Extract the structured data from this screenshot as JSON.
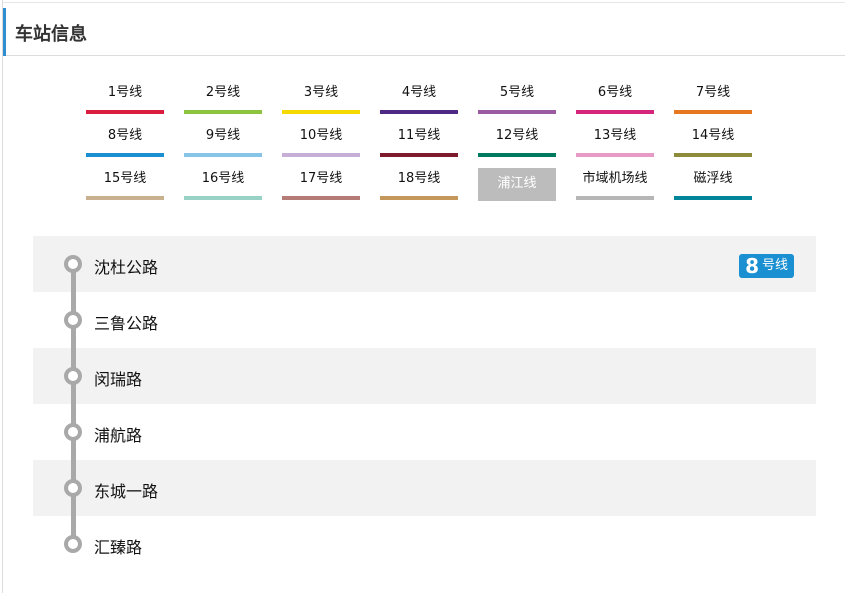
{
  "header": {
    "title": "车站信息",
    "accent_color": "#2d8fd0"
  },
  "lines": [
    {
      "label": "1号线",
      "color": "#d81e3c"
    },
    {
      "label": "2号线",
      "color": "#8dc43f"
    },
    {
      "label": "3号线",
      "color": "#f5d800"
    },
    {
      "label": "4号线",
      "color": "#4e2a84"
    },
    {
      "label": "5号线",
      "color": "#9a5ba0"
    },
    {
      "label": "6号线",
      "color": "#d6267c"
    },
    {
      "label": "7号线",
      "color": "#e87722"
    },
    {
      "label": "8号线",
      "color": "#1a8fd1"
    },
    {
      "label": "9号线",
      "color": "#87c5e8"
    },
    {
      "label": "10号线",
      "color": "#c6aed6"
    },
    {
      "label": "11号线",
      "color": "#7d1a2b"
    },
    {
      "label": "12号线",
      "color": "#007a5e"
    },
    {
      "label": "13号线",
      "color": "#e89ac7"
    },
    {
      "label": "14号线",
      "color": "#8c8c3a"
    },
    {
      "label": "15号线",
      "color": "#c9b18f"
    },
    {
      "label": "16号线",
      "color": "#98d1c6"
    },
    {
      "label": "17号线",
      "color": "#b57b76"
    },
    {
      "label": "18号线",
      "color": "#c4985a"
    },
    {
      "label": "浦江线",
      "color": "#bcbcbc",
      "active": true
    },
    {
      "label": "市域机场线",
      "color": "#b6b6b6"
    },
    {
      "label": "磁浮线",
      "color": "#00859b"
    }
  ],
  "stations": [
    {
      "name": "沈杜公路"
    },
    {
      "name": "三鲁公路"
    },
    {
      "name": "闵瑞路"
    },
    {
      "name": "浦航路"
    },
    {
      "name": "东城一路"
    },
    {
      "name": "汇臻路"
    }
  ],
  "transfer_badge": {
    "number": "8",
    "suffix": "号线",
    "color": "#1a8fd1"
  }
}
